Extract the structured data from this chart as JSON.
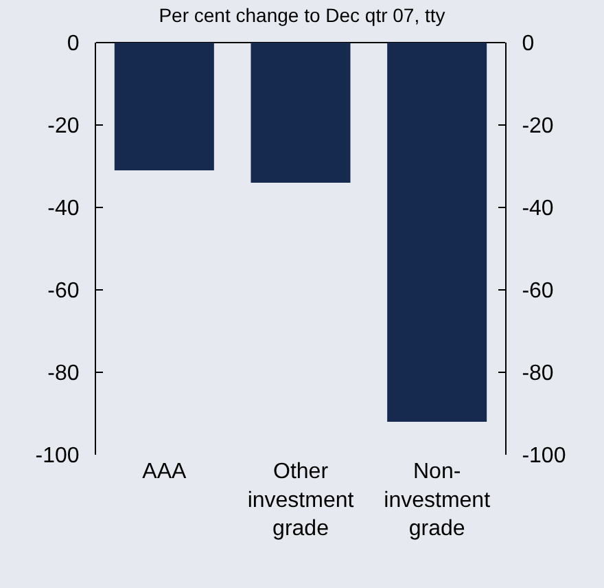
{
  "chart_data": {
    "type": "bar",
    "title": "Per cent change to Dec qtr 07, tty",
    "categories": [
      "AAA",
      "Other investment grade",
      "Non-investment grade"
    ],
    "values": [
      -31,
      -34,
      -92
    ],
    "color": "#162a50",
    "ylim": [
      -100,
      0
    ],
    "yticks": [
      0,
      -20,
      -40,
      -60,
      -80,
      -100
    ],
    "y2lim": [
      -100,
      0
    ],
    "y2ticks": [
      0,
      -20,
      -40,
      -60,
      -80,
      -100
    ],
    "grid": false
  }
}
